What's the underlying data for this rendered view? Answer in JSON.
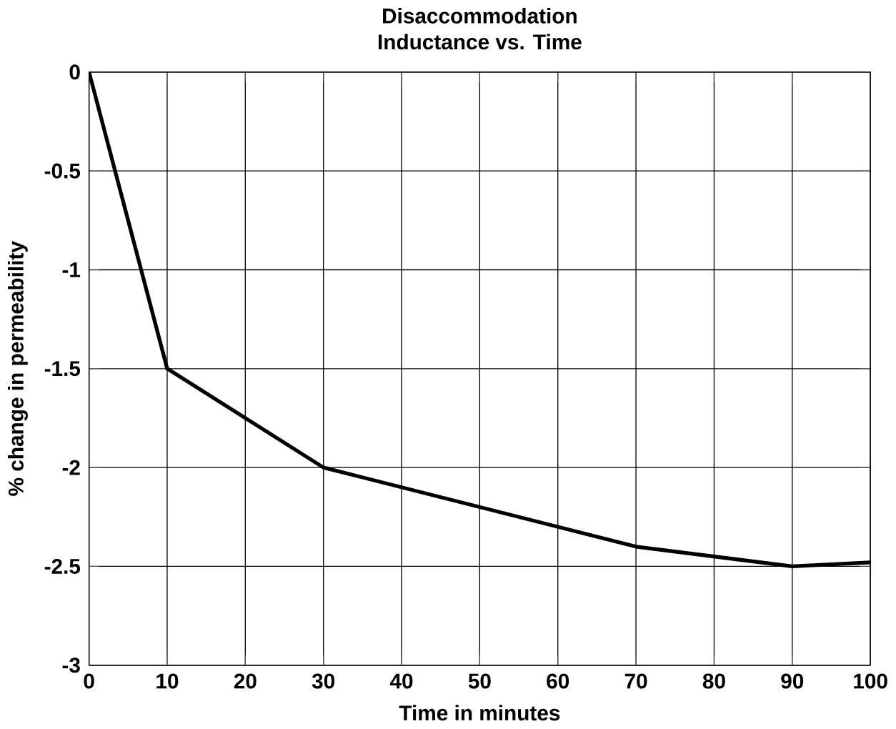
{
  "chart_data": {
    "type": "line",
    "title": "Disaccommodation",
    "subtitle": "Inductance vs. Time",
    "xlabel": "Time in minutes",
    "ylabel": "% change in permeability",
    "x": [
      0,
      10,
      30,
      70,
      90,
      100
    ],
    "values": [
      0,
      -1.5,
      -2,
      -2.4,
      -2.5,
      -2.48
    ],
    "color": "#000000",
    "xlim": [
      0,
      100
    ],
    "ylim": [
      -3,
      0
    ],
    "xticks": [
      0,
      10,
      20,
      30,
      40,
      50,
      60,
      70,
      80,
      90,
      100
    ],
    "yticks": [
      -3,
      -2.5,
      -2,
      -1.5,
      -1,
      -0.5,
      0
    ],
    "grid": true,
    "marker": "none",
    "line_style": "solid"
  }
}
